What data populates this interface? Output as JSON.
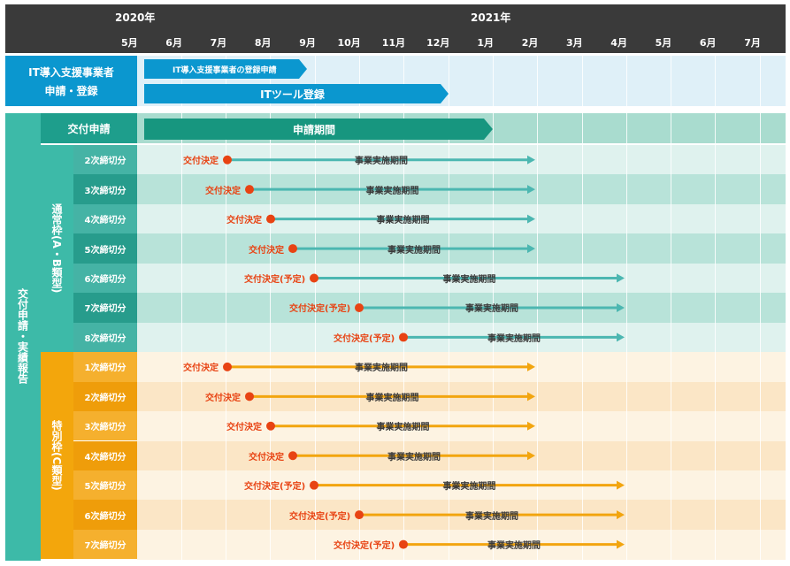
{
  "header": {
    "years": [
      "2020年",
      "2021年"
    ],
    "months": [
      "5月",
      "6月",
      "7月",
      "8月",
      "9月",
      "10月",
      "11月",
      "12月",
      "1月",
      "2月",
      "3月",
      "4月",
      "5月",
      "6月",
      "7月"
    ]
  },
  "it_support": {
    "title_line1": "IT導入支援事業者",
    "title_line2": "申請・登録",
    "bar1_label": "IT導入支援事業者の登録申請",
    "bar2_label": "ITツール登録"
  },
  "main": {
    "side_label": "交付申請・実績報告",
    "kofu": {
      "label": "交付申請",
      "period_label": "申請期間"
    },
    "normal": {
      "group_label": "通常枠(A・B類型)",
      "rows": [
        {
          "name": "2次締切分",
          "decision": "交付決定",
          "period": "事業実施期間"
        },
        {
          "name": "3次締切分",
          "decision": "交付決定",
          "period": "事業実施期間"
        },
        {
          "name": "4次締切分",
          "decision": "交付決定",
          "period": "事業実施期間"
        },
        {
          "name": "5次締切分",
          "decision": "交付決定",
          "period": "事業実施期間"
        },
        {
          "name": "6次締切分",
          "decision": "交付決定(予定)",
          "period": "事業実施期間"
        },
        {
          "name": "7次締切分",
          "decision": "交付決定(予定)",
          "period": "事業実施期間"
        },
        {
          "name": "8次締切分",
          "decision": "交付決定(予定)",
          "period": "事業実施期間"
        }
      ]
    },
    "special": {
      "group_label": "特別枠(C類型)",
      "rows": [
        {
          "name": "1次締切分",
          "decision": "交付決定",
          "period": "事業実施期間"
        },
        {
          "name": "2次締切分",
          "decision": "交付決定",
          "period": "事業実施期間"
        },
        {
          "name": "3次締切分",
          "decision": "交付決定",
          "period": "事業実施期間"
        },
        {
          "name": "4次締切分",
          "decision": "交付決定",
          "period": "事業実施期間"
        },
        {
          "name": "5次締切分",
          "decision": "交付決定(予定)",
          "period": "事業実施期間"
        },
        {
          "name": "6次締切分",
          "decision": "交付決定(予定)",
          "period": "事業実施期間"
        },
        {
          "name": "7次締切分",
          "decision": "交付決定(予定)",
          "period": "事業実施期間"
        }
      ]
    }
  },
  "colors": {
    "header_bg": "#3a3a3a",
    "it_blue": "#0b97cf",
    "it_band": "#dff0f8",
    "teal_dark": "#1e9e8c",
    "teal": "#3dbaa8",
    "teal_bar": "#17967f",
    "teal_arrow": "#4cb7b1",
    "orange": "#f3a60c",
    "orange_arrow": "#f2a50f",
    "marker_red": "#e84313"
  }
}
